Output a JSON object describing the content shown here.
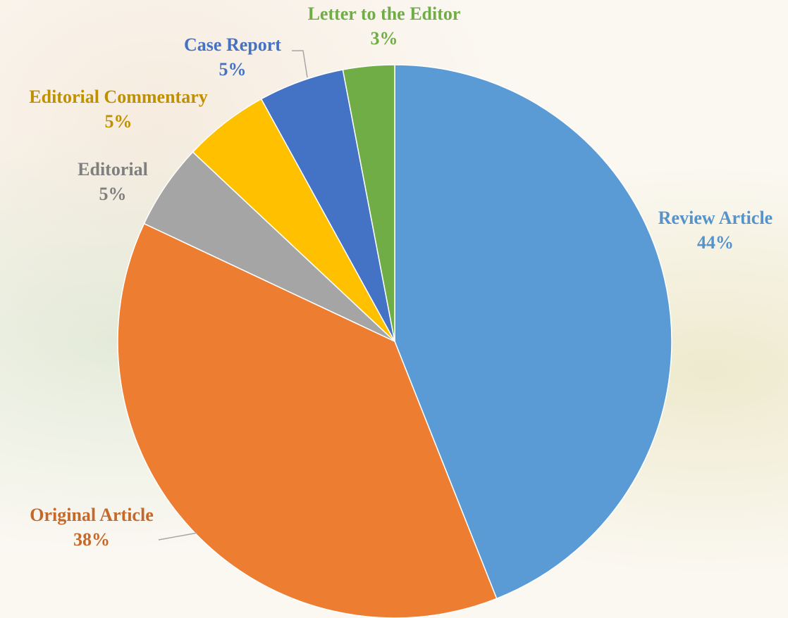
{
  "chart_data": {
    "type": "pie",
    "categories": [
      "Review Article",
      "Original Article",
      "Editorial",
      "Editorial Commentary",
      "Case Report",
      "Letter to the Editor"
    ],
    "values": [
      44,
      38,
      5,
      5,
      5,
      3
    ],
    "value_labels": [
      "44%",
      "38%",
      "5%",
      "5%",
      "5%",
      "3%"
    ],
    "colors": [
      "#5b9bd5",
      "#ed7d31",
      "#a5a5a5",
      "#ffc000",
      "#4472c4",
      "#70ad47"
    ]
  }
}
